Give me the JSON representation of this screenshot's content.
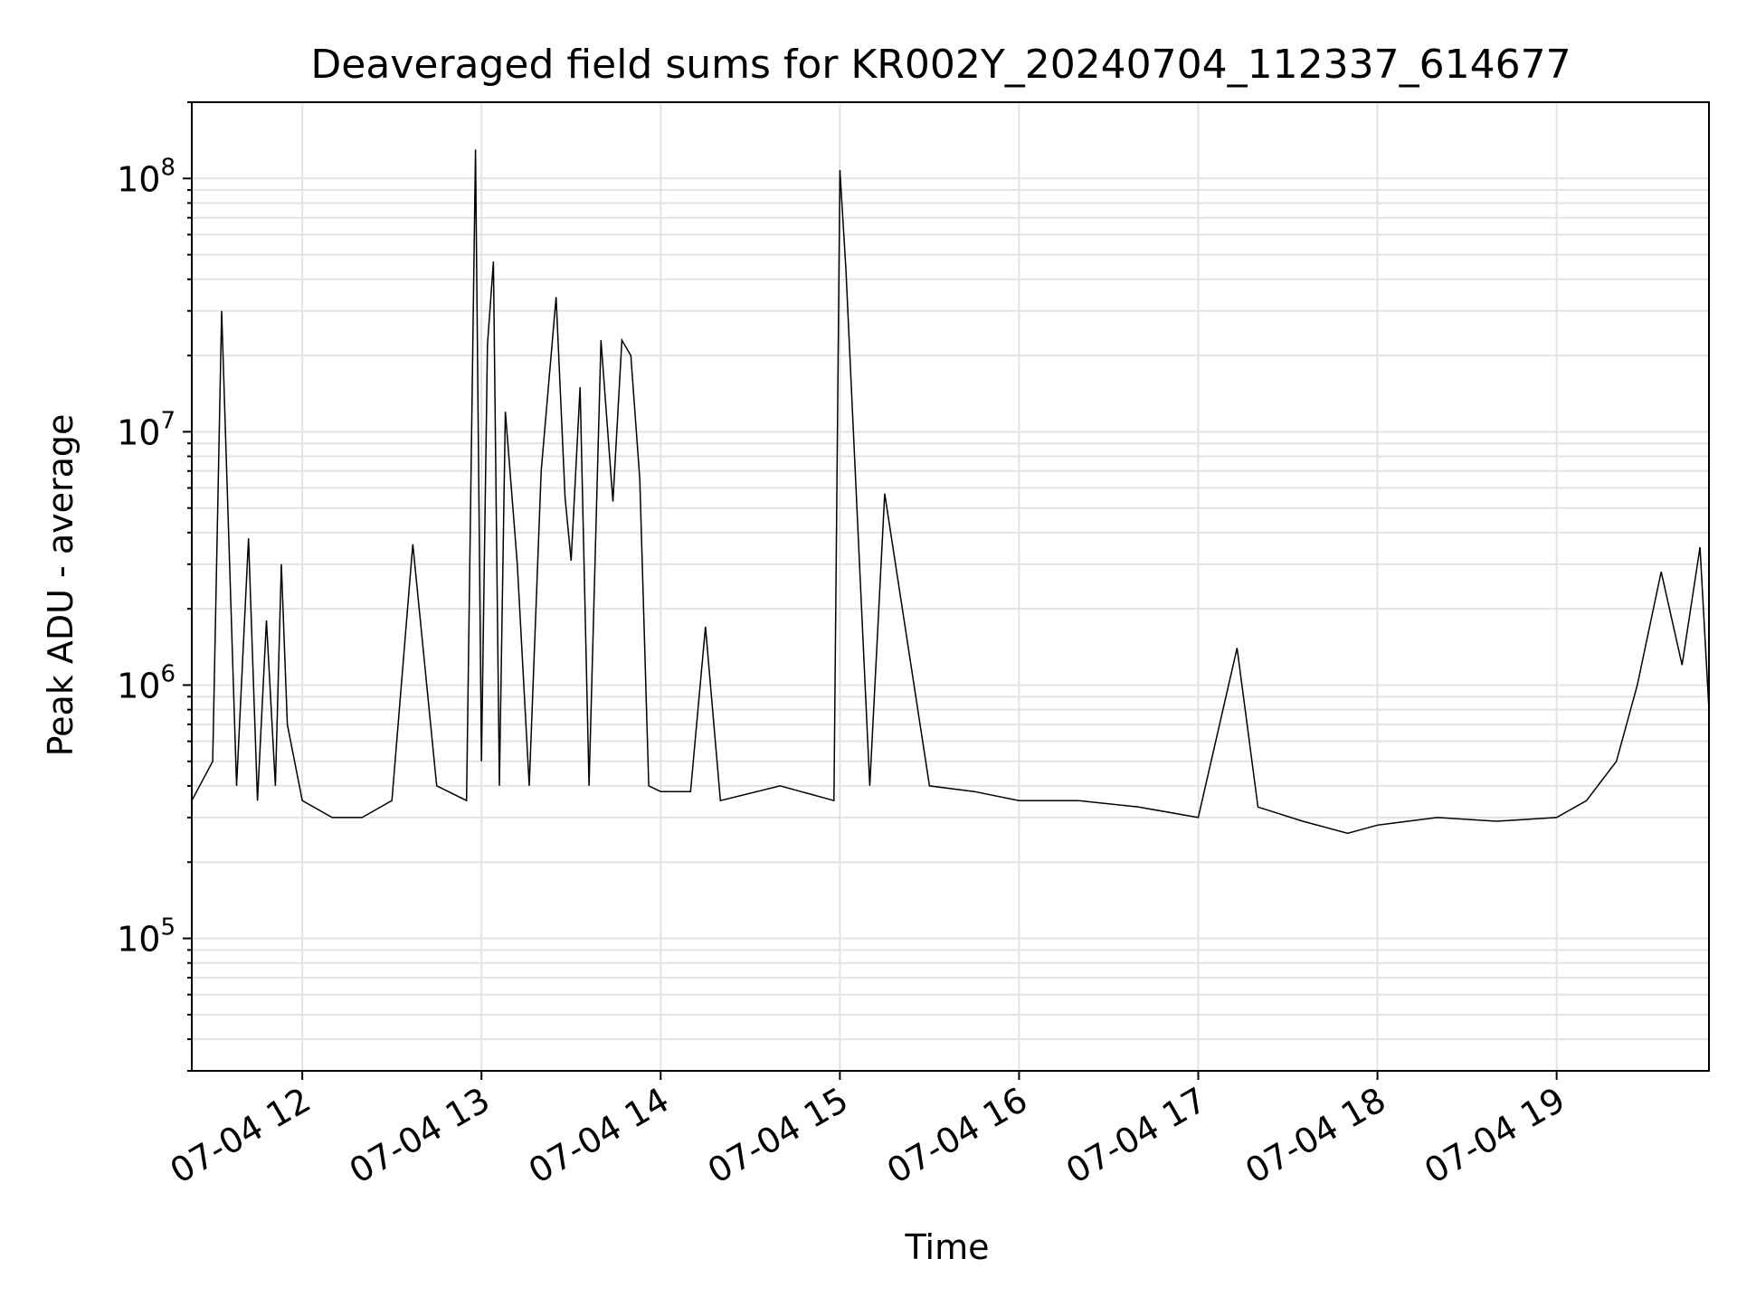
{
  "chart_data": {
    "type": "line",
    "title": "Deaveraged field sums for KR002Y_20240704_112337_614677",
    "xlabel": "Time",
    "ylabel": "Peak ADU - average",
    "y_scale": "log",
    "ylim": [
      30000,
      200000000
    ],
    "xlim": [
      "07-04 11:23",
      "07-04 19:51"
    ],
    "grid": true,
    "legend": "none",
    "line_color": "#000000",
    "x_ticks": [
      "07-04 12",
      "07-04 13",
      "07-04 14",
      "07-04 15",
      "07-04 16",
      "07-04 17",
      "07-04 18",
      "07-04 19"
    ],
    "y_ticks": [
      {
        "base": "10",
        "exp": "5",
        "value": 100000
      },
      {
        "base": "10",
        "exp": "6",
        "value": 1000000
      },
      {
        "base": "10",
        "exp": "7",
        "value": 10000000
      },
      {
        "base": "10",
        "exp": "8",
        "value": 100000000
      }
    ],
    "series": [
      {
        "x": [
          "07-04 11:23",
          "07-04 11:30",
          "07-04 11:33",
          "07-04 11:38",
          "07-04 11:42",
          "07-04 11:45",
          "07-04 11:48",
          "07-04 11:51",
          "07-04 11:53",
          "07-04 11:55",
          "07-04 12:00",
          "07-04 12:10",
          "07-04 12:20",
          "07-04 12:30",
          "07-04 12:37",
          "07-04 12:45",
          "07-04 12:55",
          "07-04 12:58",
          "07-04 13:00",
          "07-04 13:02",
          "07-04 13:04",
          "07-04 13:06",
          "07-04 13:08",
          "07-04 13:12",
          "07-04 13:16",
          "07-04 13:20",
          "07-04 13:25",
          "07-04 13:28",
          "07-04 13:30",
          "07-04 13:33",
          "07-04 13:36",
          "07-04 13:40",
          "07-04 13:44",
          "07-04 13:47",
          "07-04 13:50",
          "07-04 13:53",
          "07-04 13:56",
          "07-04 14:00",
          "07-04 14:10",
          "07-04 14:15",
          "07-04 14:20",
          "07-04 14:40",
          "07-04 14:58",
          "07-04 15:00",
          "07-04 15:02",
          "07-04 15:10",
          "07-04 15:15",
          "07-04 15:30",
          "07-04 15:45",
          "07-04 16:00",
          "07-04 16:20",
          "07-04 16:40",
          "07-04 17:00",
          "07-04 17:13",
          "07-04 17:20",
          "07-04 17:35",
          "07-04 17:50",
          "07-04 18:00",
          "07-04 18:20",
          "07-04 18:40",
          "07-04 19:00",
          "07-04 19:10",
          "07-04 19:20",
          "07-04 19:27",
          "07-04 19:35",
          "07-04 19:42",
          "07-04 19:48",
          "07-04 19:51"
        ],
        "y": [
          350000,
          500000,
          30000000,
          400000,
          3800000,
          350000,
          1800000,
          400000,
          3000000,
          700000,
          350000,
          300000,
          300000,
          350000,
          3600000,
          400000,
          350000,
          130000000,
          500000,
          22000000,
          47000000,
          400000,
          12000000,
          3000000,
          400000,
          7000000,
          34000000,
          5500000,
          3100000,
          15000000,
          400000,
          23000000,
          5300000,
          23000000,
          20000000,
          6500000,
          400000,
          380000,
          380000,
          1700000,
          350000,
          400000,
          350000,
          108000000,
          44000000,
          400000,
          5700000,
          400000,
          380000,
          350000,
          350000,
          330000,
          300000,
          1400000,
          330000,
          290000,
          260000,
          280000,
          300000,
          290000,
          300000,
          350000,
          500000,
          1000000,
          2800000,
          1200000,
          3500000,
          800000
        ]
      }
    ]
  }
}
